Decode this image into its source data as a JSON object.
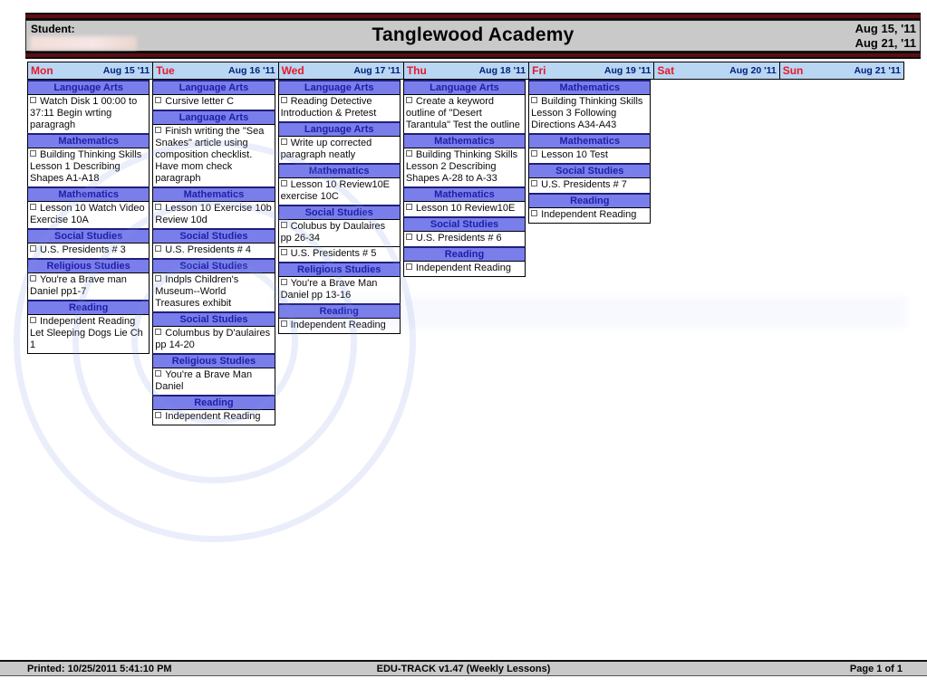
{
  "header": {
    "student_label": "Student:",
    "title": "Tanglewood Academy",
    "week_start": "Aug 15, '11",
    "week_end": "Aug 21, '11"
  },
  "days": [
    {
      "name": "Mon",
      "date": "Aug 15 '11",
      "blocks": [
        {
          "subject": "Language Arts",
          "item": "Watch Disk 1 00:00 to 37:11 Begin wrting paragragh"
        },
        {
          "subject": "Mathematics",
          "item": "Building Thinking Skills Lesson 1 Describing Shapes A1-A18"
        },
        {
          "subject": "Mathematics",
          "item": "Lesson 10 Watch Video Exercise 10A"
        },
        {
          "subject": "Social Studies",
          "item": "U.S. Presidents # 3"
        },
        {
          "subject": "Religious Studies",
          "item": "You're a Brave man Daniel pp1-7"
        },
        {
          "subject": "Reading",
          "item": "Independent Reading Let Sleeping Dogs Lie Ch 1"
        }
      ]
    },
    {
      "name": "Tue",
      "date": "Aug 16 '11",
      "blocks": [
        {
          "subject": "Language Arts",
          "item": "Cursive letter C"
        },
        {
          "subject": "Language Arts",
          "item": "Finish writing the \"Sea Snakes\" article using composition checklist. Have mom check paragraph"
        },
        {
          "subject": "Mathematics",
          "item": "Lesson 10 Exercise 10b Review 10d"
        },
        {
          "subject": "Social Studies",
          "item": "U.S. Presidents # 4"
        },
        {
          "subject": "Social Studies",
          "item": "Indpls Children's Museum--World Treasures exhibit"
        },
        {
          "subject": "Social Studies",
          "item": "Columbus by D'aulaires pp 14-20"
        },
        {
          "subject": "Religious Studies",
          "item": "You're a Brave Man Daniel"
        },
        {
          "subject": "Reading",
          "item": "Independent Reading"
        }
      ]
    },
    {
      "name": "Wed",
      "date": "Aug 17 '11",
      "blocks": [
        {
          "subject": "Language Arts",
          "item": "Reading Detective Introduction & Pretest"
        },
        {
          "subject": "Language Arts",
          "item": "Write up corrected paragraph neatly"
        },
        {
          "subject": "Mathematics",
          "item": "Lesson 10 Review10E exercise 10C"
        },
        {
          "subject": "Social Studies",
          "item": "Colubus by Daulaires pp 26-34"
        },
        {
          "subject": null,
          "item": "U.S. Presidents # 5"
        },
        {
          "subject": "Religious Studies",
          "item": "You're a Brave Man Daniel pp 13-16"
        },
        {
          "subject": "Reading",
          "item": "Independent Reading"
        }
      ]
    },
    {
      "name": "Thu",
      "date": "Aug 18 '11",
      "blocks": [
        {
          "subject": "Language Arts",
          "item": "Create a keyword outline of \"Desert Tarantula\" Test the outline"
        },
        {
          "subject": "Mathematics",
          "item": "Building Thinking Skills Lesson 2 Describing Shapes A-28 to A-33"
        },
        {
          "subject": "Mathematics",
          "item": "Lesson 10 Review10E"
        },
        {
          "subject": "Social Studies",
          "item": "U.S. Presidents # 6"
        },
        {
          "subject": "Reading",
          "item": "Independent Reading"
        }
      ]
    },
    {
      "name": "Fri",
      "date": "Aug 19 '11",
      "blocks": [
        {
          "subject": "Mathematics",
          "item": "Building Thinking Skills Lesson 3 Following Directions A34-A43"
        },
        {
          "subject": "Mathematics",
          "item": "Lesson 10 Test"
        },
        {
          "subject": "Social Studies",
          "item": "U.S. Presidents # 7"
        },
        {
          "subject": "Reading",
          "item": "Independent Reading"
        }
      ]
    },
    {
      "name": "Sat",
      "date": "Aug 20 '11",
      "blocks": []
    },
    {
      "name": "Sun",
      "date": "Aug 21 '11",
      "blocks": []
    }
  ],
  "footer": {
    "printed": "Printed: 10/25/2011 5:41:10 PM",
    "app": "EDU-TRACK v1.47 (Weekly Lessons)",
    "page": "Page 1 of 1"
  },
  "colors": {
    "day_name": "#e8192c",
    "day_date": "#001f7a",
    "subject_band": "#7a7eea",
    "subject_text": "#1e1ea8",
    "day_header_bg": "#b9d6f2",
    "bar_bg": "#c9c9c9",
    "stripe": "#5e0e12",
    "watermark": "#7a96dd"
  }
}
